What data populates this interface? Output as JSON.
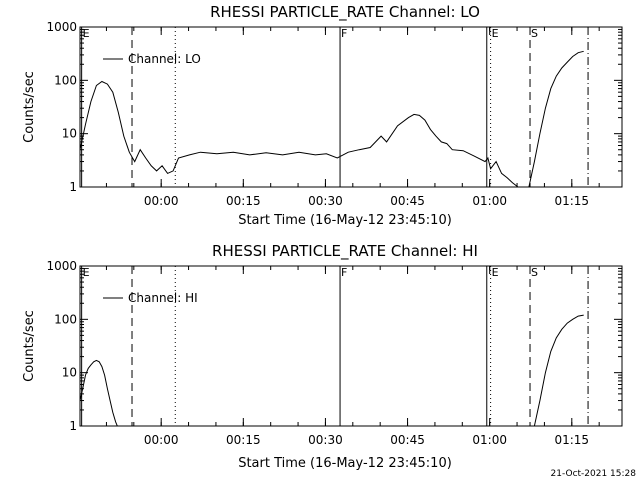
{
  "chart_data": [
    {
      "type": "line",
      "title": "RHESSI PARTICLE_RATE Channel: LO",
      "xlabel": "Start Time (16-May-12 23:45:10)",
      "ylabel": "Counts/sec",
      "yscale": "log",
      "xunit": "minutes from start",
      "xlim": [
        0,
        99
      ],
      "ylim": [
        1,
        1000
      ],
      "x_tick_labels": [
        "00:00",
        "00:15",
        "00:30",
        "00:45",
        "01:00",
        "01:15"
      ],
      "x_tick_values": [
        14.83,
        29.83,
        44.83,
        59.83,
        74.83,
        89.83
      ],
      "y_tick_labels": [
        "1",
        "10",
        "100",
        "1000"
      ],
      "y_tick_values": [
        1,
        10,
        100,
        1000
      ],
      "legend": {
        "label": "Channel: LO",
        "position": "top-left"
      },
      "markers": [
        {
          "label": "E",
          "x": 0.3,
          "style": "solid"
        },
        {
          "label": "",
          "x": 9.5,
          "style": "dashed"
        },
        {
          "label": "",
          "x": 17.4,
          "style": "dotted"
        },
        {
          "label": "F",
          "x": 47.5,
          "style": "solid"
        },
        {
          "label": "",
          "x": 74.3,
          "style": "solid"
        },
        {
          "label": "E",
          "x": 75.0,
          "style": "dotted"
        },
        {
          "label": "S",
          "x": 82.2,
          "style": "dashed"
        },
        {
          "label": "",
          "x": 92.8,
          "style": "dashdot"
        }
      ],
      "series": [
        {
          "name": "Channel: LO",
          "x": [
            0,
            1,
            2,
            3,
            4,
            5,
            6,
            7,
            8,
            9,
            10,
            11,
            12,
            13,
            14,
            15,
            16,
            17,
            18,
            20,
            22,
            25,
            28,
            31,
            34,
            37,
            40,
            43,
            45,
            47,
            49,
            51,
            53,
            55,
            56,
            58,
            60,
            61,
            62,
            63,
            64,
            65,
            66,
            67,
            68,
            70,
            72,
            74,
            74.5,
            75,
            76,
            77,
            78,
            79,
            80,
            81,
            82,
            83,
            84,
            85,
            86,
            87,
            88,
            89,
            90,
            91,
            92
          ],
          "y": [
            5,
            15,
            40,
            80,
            95,
            85,
            60,
            25,
            9,
            4.5,
            3,
            5,
            3.5,
            2.5,
            2,
            2.5,
            1.8,
            2,
            3.5,
            4,
            4.5,
            4.2,
            4.5,
            4,
            4.4,
            4,
            4.5,
            4,
            4.2,
            3.5,
            4.5,
            5,
            5.5,
            9,
            7,
            14,
            20,
            23,
            22,
            18,
            12,
            9,
            7,
            6.5,
            5,
            4.8,
            3.8,
            3,
            3.5,
            2.2,
            3,
            1.8,
            1.5,
            1.2,
            1,
            0.8,
            1,
            3,
            10,
            30,
            70,
            120,
            170,
            220,
            280,
            330,
            350
          ]
        }
      ]
    },
    {
      "type": "line",
      "title": "RHESSI PARTICLE_RATE Channel: HI",
      "xlabel": "Start Time (16-May-12 23:45:10)",
      "ylabel": "Counts/sec",
      "yscale": "log",
      "xunit": "minutes from start",
      "xlim": [
        0,
        99
      ],
      "ylim": [
        1,
        1000
      ],
      "x_tick_labels": [
        "00:00",
        "00:15",
        "00:30",
        "00:45",
        "01:00",
        "01:15"
      ],
      "x_tick_values": [
        14.83,
        29.83,
        44.83,
        59.83,
        74.83,
        89.83
      ],
      "y_tick_labels": [
        "1",
        "10",
        "100",
        "1000"
      ],
      "y_tick_values": [
        1,
        10,
        100,
        1000
      ],
      "legend": {
        "label": "Channel: HI",
        "position": "top-left"
      },
      "markers": [
        {
          "label": "E",
          "x": 0.3,
          "style": "solid"
        },
        {
          "label": "",
          "x": 9.5,
          "style": "dashed"
        },
        {
          "label": "",
          "x": 17.4,
          "style": "dotted"
        },
        {
          "label": "F",
          "x": 47.5,
          "style": "solid"
        },
        {
          "label": "",
          "x": 74.3,
          "style": "solid"
        },
        {
          "label": "E",
          "x": 75.0,
          "style": "dotted"
        },
        {
          "label": "S",
          "x": 82.2,
          "style": "dashed"
        },
        {
          "label": "",
          "x": 92.8,
          "style": "dashdot"
        }
      ],
      "series": [
        {
          "name": "Channel: HI",
          "x": [
            0,
            0.5,
            1,
            1.5,
            2,
            2.5,
            3,
            3.5,
            4,
            4.5,
            5,
            5.5,
            6,
            6.5,
            7,
            83,
            84,
            85,
            86,
            87,
            88,
            89,
            90,
            91,
            92
          ],
          "y": [
            3,
            5,
            9,
            12,
            14,
            16,
            17,
            16,
            13,
            9,
            5,
            3,
            1.8,
            1.2,
            0.9,
            1,
            3,
            10,
            25,
            45,
            65,
            85,
            100,
            115,
            120
          ]
        }
      ]
    }
  ],
  "footer": {
    "timestamp": "21-Oct-2021 15:28"
  }
}
